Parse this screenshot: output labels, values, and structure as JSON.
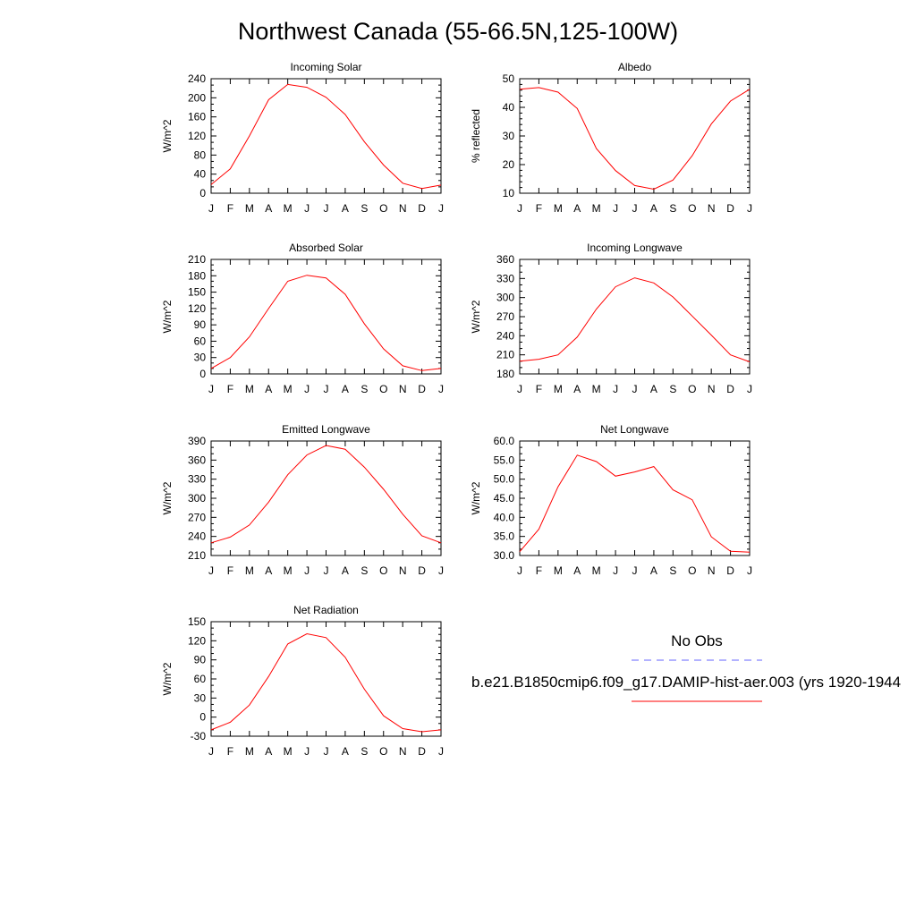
{
  "figure": {
    "title": "Northwest Canada (55-66.5N,125-100W)",
    "legend": {
      "obs_label": "No Obs",
      "obs_color": "#6666ff",
      "model_label": "b.e21.B1850cmip6.f09_g17.DAMIP-hist-aer.003 (yrs 1920-1944",
      "model_color": "#ff0000"
    }
  },
  "chart_data": [
    {
      "type": "line",
      "title": "Incoming Solar",
      "ylabel": "W/m^2",
      "categories": [
        "J",
        "F",
        "M",
        "A",
        "M",
        "J",
        "J",
        "A",
        "S",
        "O",
        "N",
        "D",
        "J"
      ],
      "ylim": [
        0,
        240
      ],
      "yticks": [
        "0",
        "40",
        "80",
        "120",
        "160",
        "200",
        "240"
      ],
      "values": [
        18,
        51,
        120,
        196,
        228,
        222,
        201,
        165,
        108,
        59,
        21,
        10,
        17
      ],
      "color": "#ff0000"
    },
    {
      "type": "line",
      "title": "Albedo",
      "ylabel": "% reflected",
      "categories": [
        "J",
        "F",
        "M",
        "A",
        "M",
        "J",
        "J",
        "A",
        "S",
        "O",
        "N",
        "D",
        "J"
      ],
      "ylim": [
        10,
        50
      ],
      "yticks": [
        "10",
        "20",
        "30",
        "40",
        "50"
      ],
      "values": [
        46.3,
        46.9,
        45.3,
        39.6,
        25.6,
        17.9,
        12.7,
        11.4,
        14.6,
        23.1,
        34.2,
        42.2,
        46.3
      ],
      "color": "#ff0000"
    },
    {
      "type": "line",
      "title": "Absorbed Solar",
      "ylabel": "W/m^2",
      "categories": [
        "J",
        "F",
        "M",
        "A",
        "M",
        "J",
        "J",
        "A",
        "S",
        "O",
        "N",
        "D",
        "J"
      ],
      "ylim": [
        0,
        210
      ],
      "yticks": [
        "0",
        "30",
        "60",
        "90",
        "120",
        "150",
        "180",
        "210"
      ],
      "values": [
        10,
        30,
        68,
        120,
        170,
        181,
        176,
        146,
        92,
        46,
        15,
        6,
        10
      ],
      "color": "#ff0000"
    },
    {
      "type": "line",
      "title": "Incoming Longwave",
      "ylabel": "W/m^2",
      "categories": [
        "J",
        "F",
        "M",
        "A",
        "M",
        "J",
        "J",
        "A",
        "S",
        "O",
        "N",
        "D",
        "J"
      ],
      "ylim": [
        180,
        360
      ],
      "yticks": [
        "180",
        "210",
        "240",
        "270",
        "300",
        "330",
        "360"
      ],
      "values": [
        200,
        203,
        210,
        238,
        282,
        317,
        331,
        323,
        301,
        271,
        241,
        210,
        199
      ],
      "color": "#ff0000"
    },
    {
      "type": "line",
      "title": "Emitted Longwave",
      "ylabel": "W/m^2",
      "categories": [
        "J",
        "F",
        "M",
        "A",
        "M",
        "J",
        "J",
        "A",
        "S",
        "O",
        "N",
        "D",
        "J"
      ],
      "ylim": [
        210,
        390
      ],
      "yticks": [
        "210",
        "240",
        "270",
        "300",
        "330",
        "360",
        "390"
      ],
      "values": [
        230,
        239,
        258,
        294,
        337,
        368,
        383,
        377,
        349,
        314,
        275,
        241,
        230
      ],
      "color": "#ff0000"
    },
    {
      "type": "line",
      "title": "Net Longwave",
      "ylabel": "W/m^2",
      "categories": [
        "J",
        "F",
        "M",
        "A",
        "M",
        "J",
        "J",
        "A",
        "S",
        "O",
        "N",
        "D",
        "J"
      ],
      "ylim": [
        30,
        60
      ],
      "yticks": [
        "30.0",
        "35.0",
        "40.0",
        "45.0",
        "50.0",
        "55.0",
        "60.0"
      ],
      "values": [
        31.0,
        36.9,
        48.0,
        56.3,
        54.6,
        50.8,
        51.9,
        53.3,
        47.2,
        44.6,
        34.9,
        31.1,
        30.9
      ],
      "color": "#ff0000"
    },
    {
      "type": "line",
      "title": "Net Radiation",
      "ylabel": "W/m^2",
      "categories": [
        "J",
        "F",
        "M",
        "A",
        "M",
        "J",
        "J",
        "A",
        "S",
        "O",
        "N",
        "D",
        "J"
      ],
      "ylim": [
        -30,
        150
      ],
      "yticks": [
        "-30",
        "0",
        "30",
        "60",
        "90",
        "120",
        "150"
      ],
      "values": [
        -20,
        -8,
        19,
        64,
        115,
        131,
        125,
        94,
        44,
        2,
        -18,
        -23,
        -20
      ],
      "color": "#ff0000"
    }
  ]
}
